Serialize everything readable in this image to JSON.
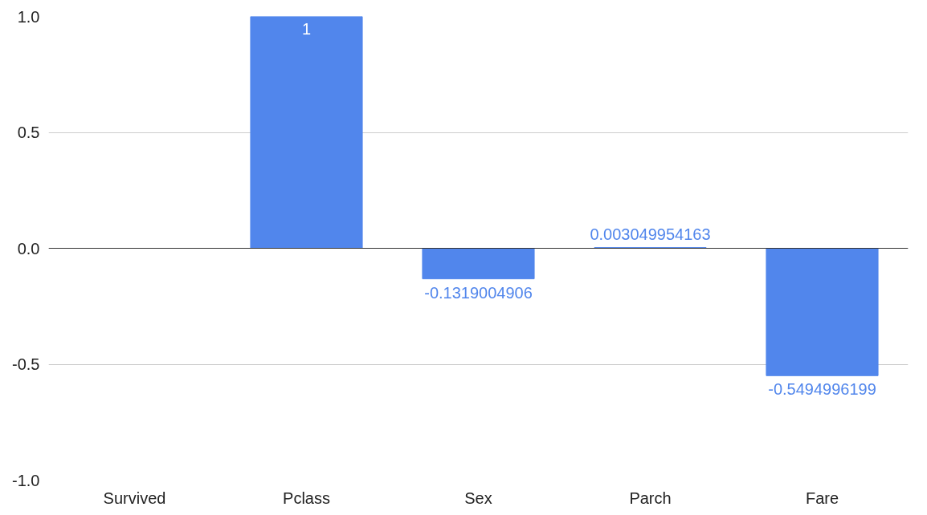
{
  "chart_data": {
    "type": "bar",
    "categories": [
      "Survived",
      "Pclass",
      "Sex",
      "Parch",
      "Fare"
    ],
    "values": [
      null,
      1,
      -0.1319004906,
      0.003049954163,
      -0.5494996199
    ],
    "value_labels": [
      null,
      "1",
      "-0.1319004906",
      "0.003049954163",
      "-0.5494996199"
    ],
    "color": "#5186ec",
    "ylim": [
      -1,
      1
    ],
    "yticks": [
      {
        "value": 1,
        "label": "1.0"
      },
      {
        "value": 0.5,
        "label": "0.5"
      },
      {
        "value": 0,
        "label": "0.0"
      },
      {
        "value": -0.5,
        "label": "-0.5"
      },
      {
        "value": -1,
        "label": "-1.0"
      }
    ],
    "grid": "y"
  }
}
